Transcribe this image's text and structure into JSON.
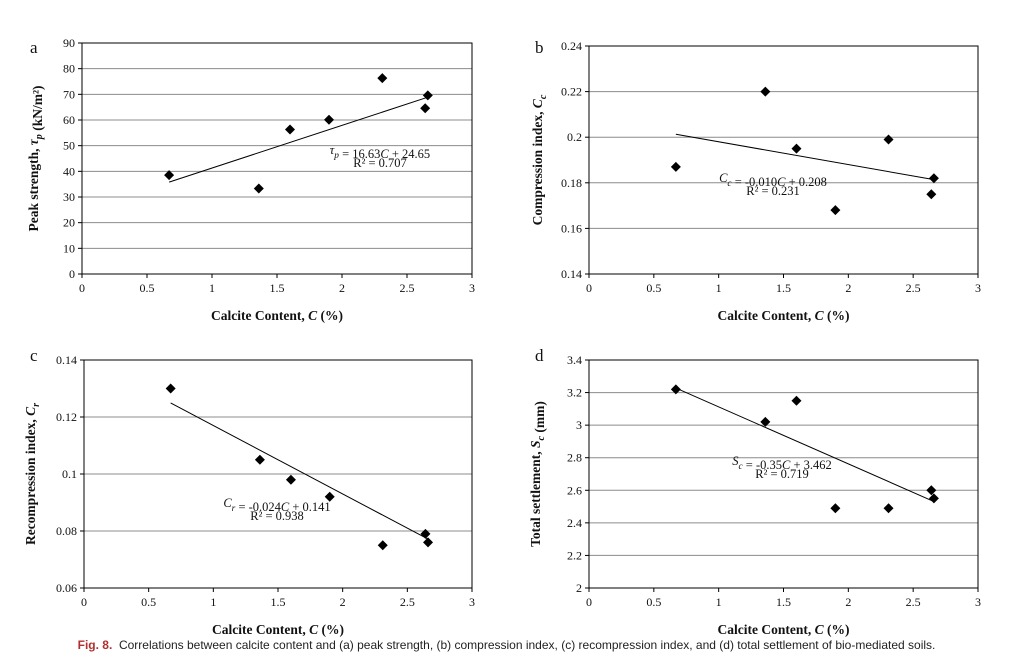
{
  "caption": {
    "label": "Fig. 8.",
    "text": "Correlations between calcite content and (a) peak strength, (b) compression index, (c) recompression index, and (d) total settlement of bio-mediated soils."
  },
  "chart_data": [
    {
      "type": "scatter",
      "panel": "a",
      "xlabel": [
        "Calcite Content, ",
        "C",
        " (%)"
      ],
      "ylabel": [
        "Peak strength, ",
        "τp",
        " (kN/m²)"
      ],
      "xlim": [
        0,
        3
      ],
      "xticks": [
        0,
        0.5,
        1,
        1.5,
        2,
        2.5,
        3
      ],
      "ylim": [
        0,
        90
      ],
      "yticks": [
        0,
        10,
        20,
        30,
        40,
        50,
        60,
        70,
        80,
        90
      ],
      "yticklabels": [
        "0",
        "10",
        "20",
        "30",
        "40",
        "50",
        "60",
        "70",
        "80",
        "90"
      ],
      "grid": true,
      "marker": "diamond",
      "color": "#000000",
      "x": [
        0.67,
        1.36,
        1.6,
        1.9,
        2.31,
        2.64,
        2.66
      ],
      "y": [
        38.5,
        33.3,
        56.3,
        60.1,
        76.3,
        64.6,
        69.6
      ],
      "trendline": {
        "slope": 16.63,
        "intercept": 24.65,
        "x_range": [
          0.67,
          2.66
        ]
      },
      "equation": [
        "τp",
        " = 16.63",
        "C",
        " + 24.65"
      ],
      "r2": "R² = 0.707"
    },
    {
      "type": "scatter",
      "panel": "b",
      "xlabel": [
        "Calcite Content, ",
        "C",
        " (%)"
      ],
      "ylabel": [
        "Compression index, ",
        "Cc",
        ""
      ],
      "xlim": [
        0,
        3
      ],
      "xticks": [
        0,
        0.5,
        1,
        1.5,
        2,
        2.5,
        3
      ],
      "ylim": [
        0.14,
        0.24
      ],
      "yticks": [
        0.14,
        0.16,
        0.18,
        0.2,
        0.22,
        0.24
      ],
      "yticklabels": [
        "0.14",
        "0.16",
        "0.18",
        "0.2",
        "0.22",
        "0.24"
      ],
      "grid": true,
      "marker": "diamond",
      "color": "#000000",
      "x": [
        0.67,
        1.36,
        1.6,
        1.9,
        2.31,
        2.64,
        2.66
      ],
      "y": [
        0.187,
        0.22,
        0.195,
        0.168,
        0.199,
        0.175,
        0.182
      ],
      "trendline": {
        "slope": -0.01,
        "intercept": 0.208,
        "x_range": [
          0.67,
          2.66
        ]
      },
      "equation": [
        "Cc",
        " = -0.010",
        "C",
        " + 0.208"
      ],
      "r2": "R² = 0.231"
    },
    {
      "type": "scatter",
      "panel": "c",
      "xlabel": [
        "Calcite Content, ",
        "C",
        " (%)"
      ],
      "ylabel": [
        "Recompression index, ",
        "Cr",
        ""
      ],
      "xlim": [
        0,
        3
      ],
      "xticks": [
        0,
        0.5,
        1,
        1.5,
        2,
        2.5,
        3
      ],
      "ylim": [
        0.06,
        0.14
      ],
      "yticks": [
        0.06,
        0.08,
        0.1,
        0.12,
        0.14
      ],
      "yticklabels": [
        "0.06",
        "0.08",
        "0.1",
        "0.12",
        "0.14"
      ],
      "grid": true,
      "marker": "diamond",
      "color": "#000000",
      "x": [
        0.67,
        1.36,
        1.6,
        1.9,
        2.31,
        2.64,
        2.66
      ],
      "y": [
        0.13,
        0.105,
        0.098,
        0.092,
        0.075,
        0.079,
        0.076
      ],
      "trendline": {
        "slope": -0.024,
        "intercept": 0.141,
        "x_range": [
          0.67,
          2.66
        ]
      },
      "equation": [
        "Cr",
        " = -0.024",
        "C",
        " + 0.141"
      ],
      "r2": "R² = 0.938"
    },
    {
      "type": "scatter",
      "panel": "d",
      "xlabel": [
        "Calcite Content, ",
        "C",
        " (%)"
      ],
      "ylabel": [
        "Total settlement, ",
        "Sc",
        " (mm)"
      ],
      "xlim": [
        0,
        3
      ],
      "xticks": [
        0,
        0.5,
        1,
        1.5,
        2,
        2.5,
        3
      ],
      "ylim": [
        2,
        3.4
      ],
      "yticks": [
        2,
        2.2,
        2.4,
        2.6,
        2.8,
        3,
        3.2,
        3.4
      ],
      "yticklabels": [
        "2",
        "2.2",
        "2.4",
        "2.6",
        "2.8",
        "3",
        "3.2",
        "3.4"
      ],
      "grid": true,
      "marker": "diamond",
      "color": "#000000",
      "x": [
        0.67,
        1.36,
        1.6,
        1.9,
        2.31,
        2.64,
        2.66
      ],
      "y": [
        3.22,
        3.02,
        3.15,
        2.49,
        2.49,
        2.6,
        2.55
      ],
      "trendline": {
        "slope": -0.35,
        "intercept": 3.462,
        "x_range": [
          0.67,
          2.66
        ]
      },
      "equation": [
        "Sc",
        " = -0.35",
        "C",
        " + 3.462"
      ],
      "r2": "R² = 0.719"
    }
  ]
}
